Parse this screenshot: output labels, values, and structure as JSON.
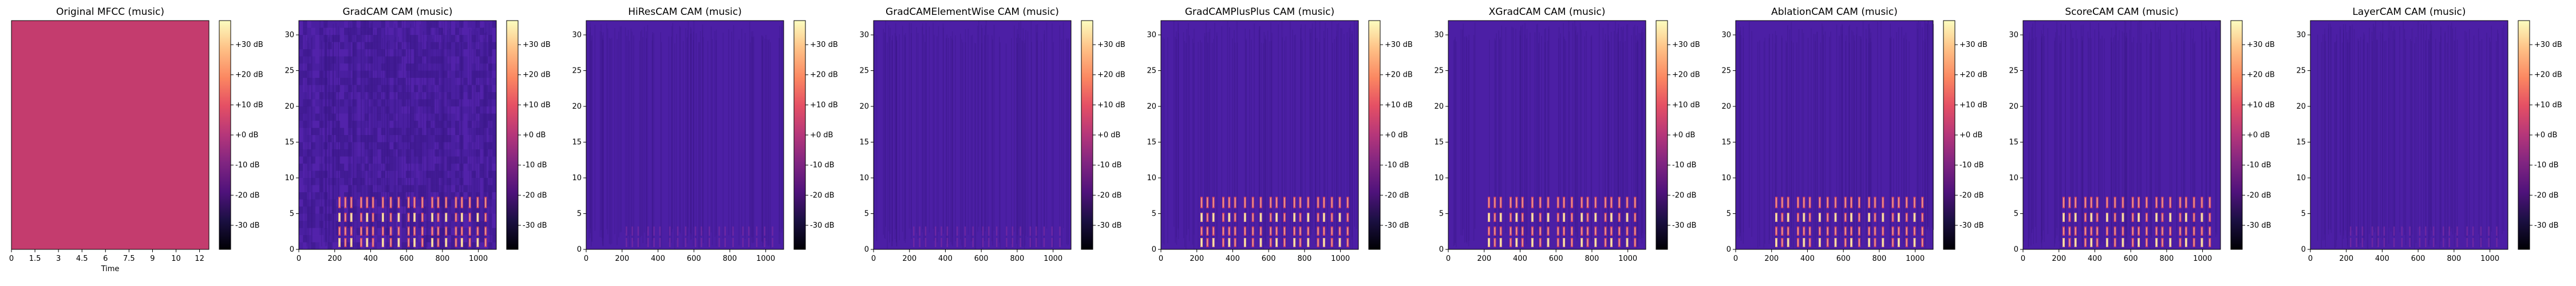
{
  "chart_data": [
    {
      "type": "heatmap",
      "title": "Original MFCC (music)",
      "xlabel": "Time",
      "ylabel": "",
      "x_ticks": [
        "0",
        "1.5",
        "3",
        "4.5",
        "6",
        "7.5",
        "9",
        "10",
        "12"
      ],
      "y_ticks": [],
      "colorbar": {
        "ticks": [
          "+30 dB",
          "+20 dB",
          "+10 dB",
          "+0 dB",
          "-10 dB",
          "-20 dB",
          "-30 dB"
        ],
        "range": [
          -38,
          38
        ]
      },
      "colormap": "magma",
      "pattern": "uniform",
      "fill_color": "#c43c6e"
    },
    {
      "type": "heatmap",
      "title": "GradCAM CAM (music)",
      "xlabel": "",
      "ylabel": "",
      "x_ticks": [
        "0",
        "200",
        "400",
        "600",
        "800",
        "1000"
      ],
      "y_ticks": [
        "0",
        "5",
        "10",
        "15",
        "20",
        "25",
        "30"
      ],
      "xlim": [
        0,
        1100
      ],
      "ylim": [
        0,
        32
      ],
      "colorbar": {
        "ticks": [
          "+30 dB",
          "+20 dB",
          "+10 dB",
          "+0 dB",
          "-10 dB",
          "-20 dB",
          "-30 dB"
        ],
        "range": [
          -38,
          38
        ]
      },
      "colormap": "magma",
      "pattern": "gradcam",
      "fill_color": "#4c1fa5"
    },
    {
      "type": "heatmap",
      "title": "HiResCAM CAM (music)",
      "xlabel": "",
      "ylabel": "",
      "x_ticks": [
        "0",
        "200",
        "400",
        "600",
        "800",
        "1000"
      ],
      "y_ticks": [
        "0",
        "5",
        "10",
        "15",
        "20",
        "25",
        "30"
      ],
      "xlim": [
        0,
        1100
      ],
      "ylim": [
        0,
        32
      ],
      "colorbar": {
        "ticks": [
          "+30 dB",
          "+20 dB",
          "+10 dB",
          "+0 dB",
          "-10 dB",
          "-20 dB",
          "-30 dB"
        ],
        "range": [
          -38,
          38
        ]
      },
      "colormap": "magma",
      "pattern": "faint",
      "fill_color": "#4c1fa5"
    },
    {
      "type": "heatmap",
      "title": "GradCAMElementWise CAM (music)",
      "xlabel": "",
      "ylabel": "",
      "x_ticks": [
        "0",
        "200",
        "400",
        "600",
        "800",
        "1000"
      ],
      "y_ticks": [
        "0",
        "5",
        "10",
        "15",
        "20",
        "25",
        "30"
      ],
      "xlim": [
        0,
        1100
      ],
      "ylim": [
        0,
        32
      ],
      "colorbar": {
        "ticks": [
          "+30 dB",
          "+20 dB",
          "+10 dB",
          "+0 dB",
          "-10 dB",
          "-20 dB",
          "-30 dB"
        ],
        "range": [
          -38,
          38
        ]
      },
      "colormap": "magma",
      "pattern": "faint",
      "fill_color": "#4c1fa5"
    },
    {
      "type": "heatmap",
      "title": "GradCAMPlusPlus CAM (music)",
      "xlabel": "",
      "ylabel": "",
      "x_ticks": [
        "0",
        "200",
        "400",
        "600",
        "800",
        "1000"
      ],
      "y_ticks": [
        "0",
        "5",
        "10",
        "15",
        "20",
        "25",
        "30"
      ],
      "xlim": [
        0,
        1100
      ],
      "ylim": [
        0,
        32
      ],
      "colorbar": {
        "ticks": [
          "+30 dB",
          "+20 dB",
          "+10 dB",
          "+0 dB",
          "-10 dB",
          "-20 dB",
          "-30 dB"
        ],
        "range": [
          -38,
          38
        ]
      },
      "colormap": "magma",
      "pattern": "strong",
      "fill_color": "#4c1fa5"
    },
    {
      "type": "heatmap",
      "title": "XGradCAM CAM (music)",
      "xlabel": "",
      "ylabel": "",
      "x_ticks": [
        "0",
        "200",
        "400",
        "600",
        "800",
        "1000"
      ],
      "y_ticks": [
        "0",
        "5",
        "10",
        "15",
        "20",
        "25",
        "30"
      ],
      "xlim": [
        0,
        1100
      ],
      "ylim": [
        0,
        32
      ],
      "colorbar": {
        "ticks": [
          "+30 dB",
          "+20 dB",
          "+10 dB",
          "+0 dB",
          "-10 dB",
          "-20 dB",
          "-30 dB"
        ],
        "range": [
          -38,
          38
        ]
      },
      "colormap": "magma",
      "pattern": "strong",
      "fill_color": "#4c1fa5"
    },
    {
      "type": "heatmap",
      "title": "AblationCAM CAM (music)",
      "xlabel": "",
      "ylabel": "",
      "x_ticks": [
        "0",
        "200",
        "400",
        "600",
        "800",
        "1000"
      ],
      "y_ticks": [
        "0",
        "5",
        "10",
        "15",
        "20",
        "25",
        "30"
      ],
      "xlim": [
        0,
        1100
      ],
      "ylim": [
        0,
        32
      ],
      "colorbar": {
        "ticks": [
          "+30 dB",
          "+20 dB",
          "+10 dB",
          "+0 dB",
          "-10 dB",
          "-20 dB",
          "-30 dB"
        ],
        "range": [
          -38,
          38
        ]
      },
      "colormap": "magma",
      "pattern": "strong",
      "fill_color": "#4c1fa5"
    },
    {
      "type": "heatmap",
      "title": "ScoreCAM CAM (music)",
      "xlabel": "",
      "ylabel": "",
      "x_ticks": [
        "0",
        "200",
        "400",
        "600",
        "800",
        "1000"
      ],
      "y_ticks": [
        "0",
        "5",
        "10",
        "15",
        "20",
        "25",
        "30"
      ],
      "xlim": [
        0,
        1100
      ],
      "ylim": [
        0,
        32
      ],
      "colorbar": {
        "ticks": [
          "+30 dB",
          "+20 dB",
          "+10 dB",
          "+0 dB",
          "-10 dB",
          "-20 dB",
          "-30 dB"
        ],
        "range": [
          -38,
          38
        ]
      },
      "colormap": "magma",
      "pattern": "strong",
      "fill_color": "#4c1fa5"
    },
    {
      "type": "heatmap",
      "title": "LayerCAM CAM (music)",
      "xlabel": "",
      "ylabel": "",
      "x_ticks": [
        "0",
        "200",
        "400",
        "600",
        "800",
        "1000"
      ],
      "y_ticks": [
        "0",
        "5",
        "10",
        "15",
        "20",
        "25",
        "30"
      ],
      "xlim": [
        0,
        1100
      ],
      "ylim": [
        0,
        32
      ],
      "colorbar": {
        "ticks": [
          "+30 dB",
          "+20 dB",
          "+10 dB",
          "+0 dB",
          "-10 dB",
          "-20 dB",
          "-30 dB"
        ],
        "range": [
          -38,
          38
        ]
      },
      "colormap": "magma",
      "pattern": "faint",
      "fill_color": "#4c1fa5"
    }
  ]
}
